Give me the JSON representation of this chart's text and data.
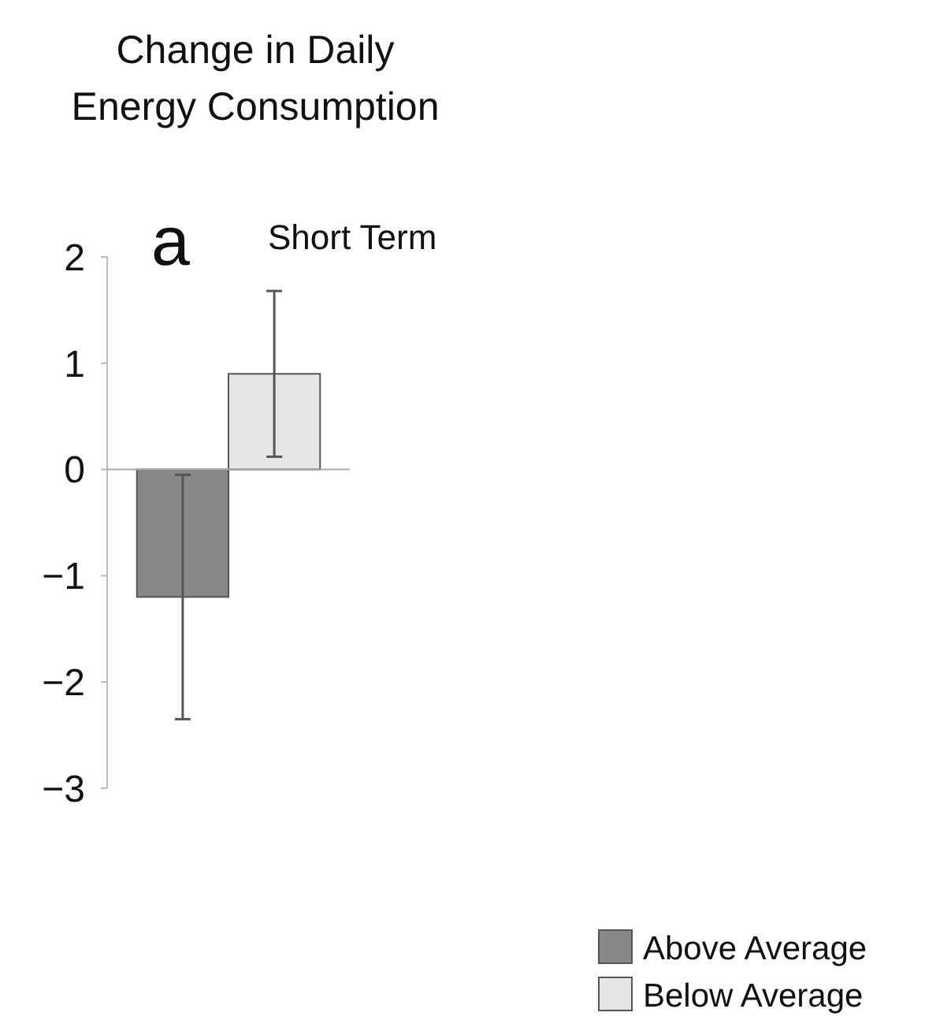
{
  "chart_data": {
    "type": "bar",
    "title": "Change in Daily\nEnergy Consumption",
    "annotations": [
      "a",
      "Short Term"
    ],
    "categories": [
      null
    ],
    "series": [
      {
        "name": "Above Average",
        "color": "#888888",
        "values": [
          -1.2
        ],
        "errors": [
          1.15
        ]
      },
      {
        "name": "Below Average",
        "color": "#e6e6e6",
        "values": [
          0.9
        ],
        "errors": [
          0.78
        ]
      }
    ],
    "ylim": [
      -3,
      2
    ],
    "yticks": [
      -3,
      -2,
      -1,
      0,
      1,
      2
    ],
    "legend": "bottom right"
  }
}
